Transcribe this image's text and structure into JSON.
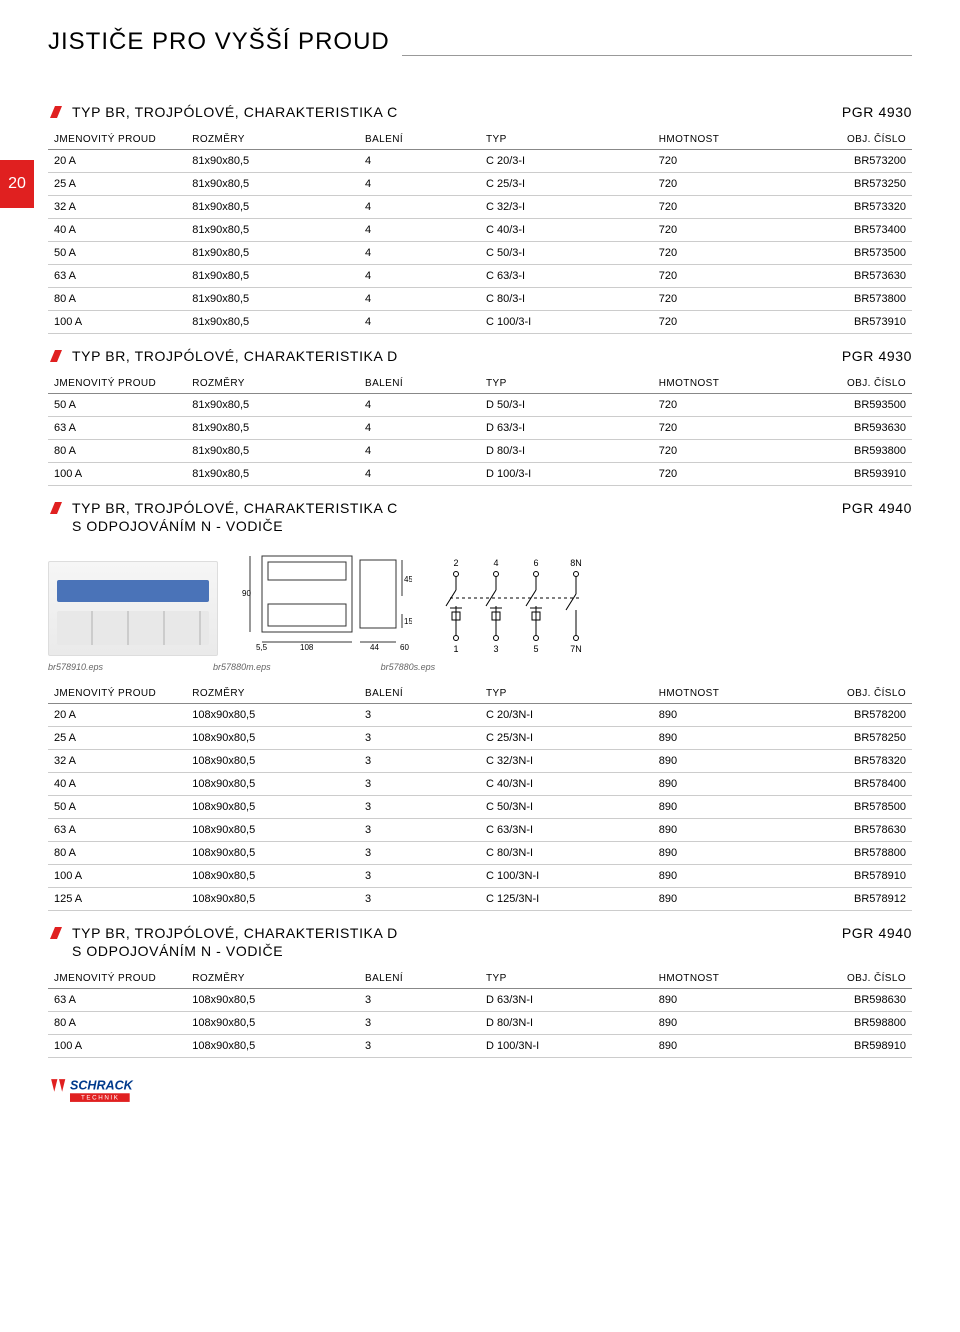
{
  "page_tab": "20",
  "page_title": "JISTIČE PRO VYŠŠÍ PROUD",
  "table_headers": [
    "JMENOVITÝ PROUD",
    "ROZMĚRY",
    "BALENÍ",
    "TYP",
    "HMOTNOST",
    "OBJ. ČÍSLO"
  ],
  "sections": [
    {
      "title": "TYP BR, TROJPÓLOVÉ, CHARAKTERISTIKA C",
      "pgr": "PGR 4930",
      "rows": [
        [
          "20 A",
          "81x90x80,5",
          "4",
          "C 20/3-I",
          "720",
          "BR573200"
        ],
        [
          "25 A",
          "81x90x80,5",
          "4",
          "C 25/3-I",
          "720",
          "BR573250"
        ],
        [
          "32 A",
          "81x90x80,5",
          "4",
          "C 32/3-I",
          "720",
          "BR573320"
        ],
        [
          "40 A",
          "81x90x80,5",
          "4",
          "C 40/3-I",
          "720",
          "BR573400"
        ],
        [
          "50 A",
          "81x90x80,5",
          "4",
          "C 50/3-I",
          "720",
          "BR573500"
        ],
        [
          "63 A",
          "81x90x80,5",
          "4",
          "C 63/3-I",
          "720",
          "BR573630"
        ],
        [
          "80 A",
          "81x90x80,5",
          "4",
          "C 80/3-I",
          "720",
          "BR573800"
        ],
        [
          "100 A",
          "81x90x80,5",
          "4",
          "C 100/3-I",
          "720",
          "BR573910"
        ]
      ]
    },
    {
      "title": "TYP BR, TROJPÓLOVÉ, CHARAKTERISTIKA D",
      "pgr": "PGR 4930",
      "rows": [
        [
          "50 A",
          "81x90x80,5",
          "4",
          "D 50/3-I",
          "720",
          "BR593500"
        ],
        [
          "63 A",
          "81x90x80,5",
          "4",
          "D 63/3-I",
          "720",
          "BR593630"
        ],
        [
          "80 A",
          "81x90x80,5",
          "4",
          "D 80/3-I",
          "720",
          "BR593800"
        ],
        [
          "100 A",
          "81x90x80,5",
          "4",
          "D 100/3-I",
          "720",
          "BR593910"
        ]
      ]
    },
    {
      "title": "TYP BR, TROJPÓLOVÉ, CHARAKTERISTIKA C",
      "subtitle": "S ODPOJOVÁNÍM N - VODIČE",
      "pgr": "PGR 4940",
      "has_diagram": true,
      "eps": [
        "br578910.eps",
        "br57880m.eps",
        "br57880s.eps"
      ],
      "dim_labels": {
        "w108": "108",
        "l5_5": "5,5",
        "w44": "44",
        "h60": "60",
        "h90": "90",
        "h45": "45",
        "h15": "15"
      },
      "circuit_labels": {
        "top": [
          "2",
          "4",
          "6",
          "8N"
        ],
        "bottom": [
          "1",
          "3",
          "5",
          "7N"
        ]
      },
      "rows": [
        [
          "20 A",
          "108x90x80,5",
          "3",
          "C 20/3N-I",
          "890",
          "BR578200"
        ],
        [
          "25 A",
          "108x90x80,5",
          "3",
          "C 25/3N-I",
          "890",
          "BR578250"
        ],
        [
          "32 A",
          "108x90x80,5",
          "3",
          "C 32/3N-I",
          "890",
          "BR578320"
        ],
        [
          "40 A",
          "108x90x80,5",
          "3",
          "C 40/3N-I",
          "890",
          "BR578400"
        ],
        [
          "50 A",
          "108x90x80,5",
          "3",
          "C 50/3N-I",
          "890",
          "BR578500"
        ],
        [
          "63 A",
          "108x90x80,5",
          "3",
          "C 63/3N-I",
          "890",
          "BR578630"
        ],
        [
          "80 A",
          "108x90x80,5",
          "3",
          "C 80/3N-I",
          "890",
          "BR578800"
        ],
        [
          "100 A",
          "108x90x80,5",
          "3",
          "C 100/3N-I",
          "890",
          "BR578910"
        ],
        [
          "125 A",
          "108x90x80,5",
          "3",
          "C 125/3N-I",
          "890",
          "BR578912"
        ]
      ]
    },
    {
      "title": "TYP BR, TROJPÓLOVÉ, CHARAKTERISTIKA D",
      "subtitle": "S ODPOJOVÁNÍM N - VODIČE",
      "pgr": "PGR 4940",
      "rows": [
        [
          "63 A",
          "108x90x80,5",
          "3",
          "D 63/3N-I",
          "890",
          "BR598630"
        ],
        [
          "80 A",
          "108x90x80,5",
          "3",
          "D 80/3N-I",
          "890",
          "BR598800"
        ],
        [
          "100 A",
          "108x90x80,5",
          "3",
          "D 100/3N-I",
          "890",
          "BR598910"
        ]
      ]
    }
  ],
  "colors": {
    "accent": "#e02020",
    "rule": "#999999",
    "row_border": "#cccccc",
    "blue": "#4a73b8"
  },
  "footer_brand": {
    "name": "SCHRACK",
    "sub": "TECHNIK"
  }
}
